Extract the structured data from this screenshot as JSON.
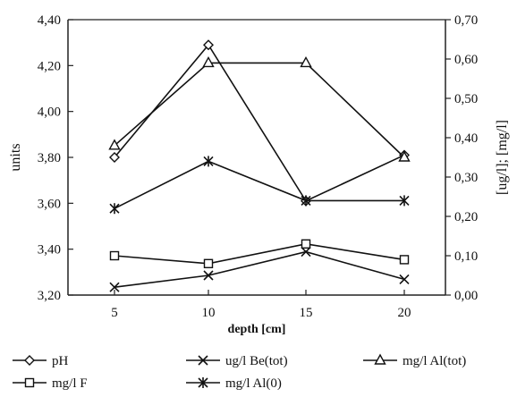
{
  "chart_data": {
    "type": "line",
    "xlabel": "depth [cm]",
    "ylabel_left": "units",
    "ylabel_right": "[ug/l]; [mg/l]",
    "categories": [
      5,
      10,
      15,
      20
    ],
    "x_tick_labels": [
      "5",
      "10",
      "15",
      "20"
    ],
    "ylim_left": [
      3.2,
      4.4
    ],
    "ylim_right": [
      0.0,
      0.7
    ],
    "y_left_ticks": [
      "3,20",
      "3,40",
      "3,60",
      "3,80",
      "4,00",
      "4,20",
      "4,40"
    ],
    "y_right_ticks": [
      "0,00",
      "0,10",
      "0,20",
      "0,30",
      "0,40",
      "0,50",
      "0,60",
      "0,70"
    ],
    "grid": false,
    "legend_position": "bottom",
    "series": [
      {
        "name": "pH",
        "axis": "left",
        "marker": "diamond",
        "values": [
          3.8,
          4.29,
          3.61,
          3.81
        ]
      },
      {
        "name": "ug/l Be(tot)",
        "axis": "right",
        "marker": "x",
        "values": [
          0.02,
          0.05,
          0.11,
          0.04
        ]
      },
      {
        "name": "mg/l Al(tot)",
        "axis": "right",
        "marker": "triangle",
        "values": [
          0.38,
          0.59,
          0.59,
          0.35
        ]
      },
      {
        "name": "mg/l F",
        "axis": "right",
        "marker": "square",
        "values": [
          0.1,
          0.08,
          0.13,
          0.09
        ]
      },
      {
        "name": "mg/l Al(0)",
        "axis": "right",
        "marker": "star",
        "values": [
          0.22,
          0.34,
          0.24,
          0.24
        ]
      }
    ]
  }
}
